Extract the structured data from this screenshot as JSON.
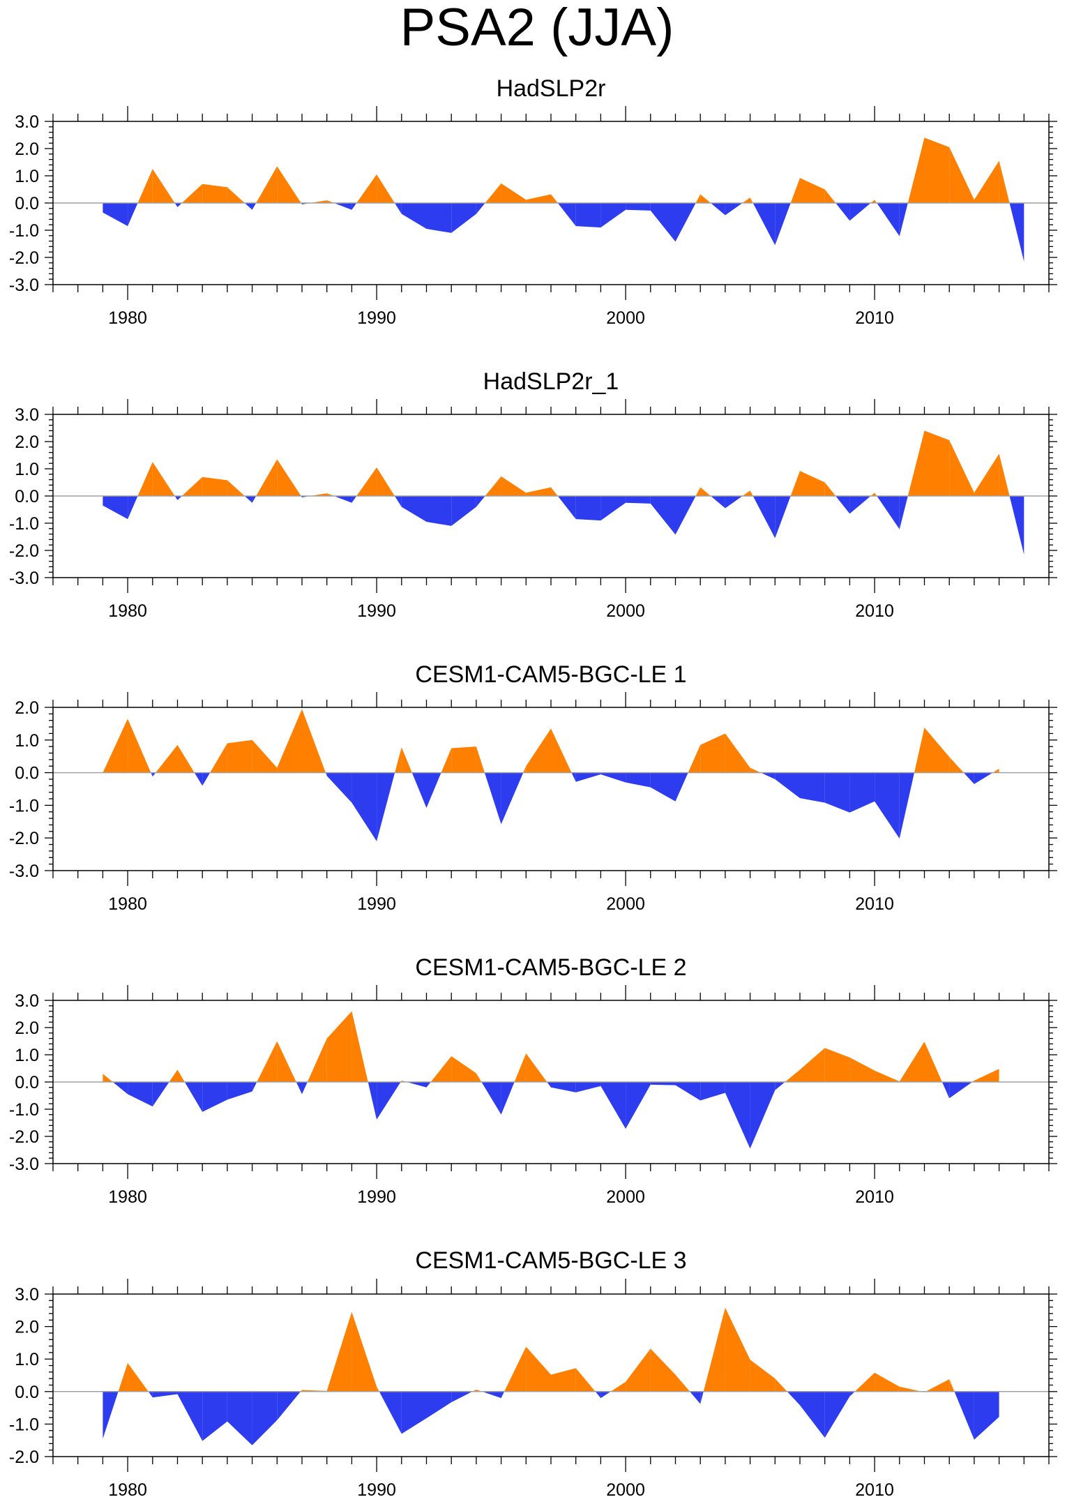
{
  "page": {
    "title": "PSA2 (JJA)"
  },
  "colors": {
    "positive": "#ff8000",
    "negative": "#2e3cf0",
    "axis": "#000000",
    "zero_line": "#a0a0a0"
  },
  "chart_data": [
    {
      "type": "area",
      "title": "HadSLP2r",
      "x": [
        1979,
        1980,
        1981,
        1982,
        1983,
        1984,
        1985,
        1986,
        1987,
        1988,
        1989,
        1990,
        1991,
        1992,
        1993,
        1994,
        1995,
        1996,
        1997,
        1998,
        1999,
        2000,
        2001,
        2002,
        2003,
        2004,
        2005,
        2006,
        2007,
        2008,
        2009,
        2010,
        2011,
        2012,
        2013,
        2014,
        2015,
        2016
      ],
      "values": [
        -0.35,
        -0.85,
        1.25,
        -0.15,
        0.7,
        0.58,
        -0.25,
        1.35,
        -0.05,
        0.1,
        -0.25,
        1.05,
        -0.4,
        -0.95,
        -1.1,
        -0.4,
        0.72,
        0.12,
        0.32,
        -0.85,
        -0.9,
        -0.25,
        -0.28,
        -1.42,
        0.32,
        -0.45,
        0.2,
        -1.55,
        0.92,
        0.5,
        -0.65,
        0.12,
        -1.22,
        2.4,
        2.05,
        0.12,
        1.55,
        -2.15
      ],
      "xlim": [
        1977,
        2017
      ],
      "ylim": [
        -3.0,
        3.0
      ],
      "yticks": [
        -3,
        -2,
        -1,
        0,
        1,
        2,
        3
      ],
      "ytick_labels": [
        "-3.0",
        "-2.0",
        "-1.0",
        "0.0",
        "1.0",
        "2.0",
        "3.0"
      ],
      "xticks": [
        1980,
        1990,
        2000,
        2010
      ],
      "xtick_labels": [
        "1980",
        "1990",
        "2000",
        "2010"
      ]
    },
    {
      "type": "area",
      "title": "HadSLP2r_1",
      "x": [
        1979,
        1980,
        1981,
        1982,
        1983,
        1984,
        1985,
        1986,
        1987,
        1988,
        1989,
        1990,
        1991,
        1992,
        1993,
        1994,
        1995,
        1996,
        1997,
        1998,
        1999,
        2000,
        2001,
        2002,
        2003,
        2004,
        2005,
        2006,
        2007,
        2008,
        2009,
        2010,
        2011,
        2012,
        2013,
        2014,
        2015,
        2016
      ],
      "values": [
        -0.35,
        -0.85,
        1.25,
        -0.15,
        0.7,
        0.58,
        -0.25,
        1.35,
        -0.05,
        0.1,
        -0.25,
        1.05,
        -0.4,
        -0.95,
        -1.1,
        -0.4,
        0.72,
        0.12,
        0.32,
        -0.85,
        -0.9,
        -0.25,
        -0.28,
        -1.42,
        0.32,
        -0.45,
        0.2,
        -1.55,
        0.92,
        0.5,
        -0.65,
        0.12,
        -1.22,
        2.4,
        2.05,
        0.12,
        1.55,
        -2.15
      ],
      "xlim": [
        1977,
        2017
      ],
      "ylim": [
        -3.0,
        3.0
      ],
      "yticks": [
        -3,
        -2,
        -1,
        0,
        1,
        2,
        3
      ],
      "ytick_labels": [
        "-3.0",
        "-2.0",
        "-1.0",
        "0.0",
        "1.0",
        "2.0",
        "3.0"
      ],
      "xticks": [
        1980,
        1990,
        2000,
        2010
      ],
      "xtick_labels": [
        "1980",
        "1990",
        "2000",
        "2010"
      ]
    },
    {
      "type": "area",
      "title": "CESM1-CAM5-BGC-LE 1",
      "x": [
        1979,
        1980,
        1981,
        1982,
        1983,
        1984,
        1985,
        1986,
        1987,
        1988,
        1989,
        1990,
        1991,
        1992,
        1993,
        1994,
        1995,
        1996,
        1997,
        1998,
        1999,
        2000,
        2001,
        2002,
        2003,
        2004,
        2005,
        2006,
        2007,
        2008,
        2009,
        2010,
        2011,
        2012,
        2013,
        2014,
        2015
      ],
      "values": [
        0.0,
        1.65,
        -0.12,
        0.85,
        -0.4,
        0.9,
        1.0,
        0.15,
        1.95,
        -0.1,
        -0.92,
        -2.1,
        0.78,
        -1.08,
        0.75,
        0.8,
        -1.58,
        0.2,
        1.35,
        -0.28,
        -0.05,
        -0.3,
        -0.45,
        -0.88,
        0.85,
        1.2,
        0.15,
        -0.2,
        -0.78,
        -0.92,
        -1.22,
        -0.88,
        -2.02,
        1.38,
        0.48,
        -0.35,
        0.12
      ],
      "xlim": [
        1977,
        2017
      ],
      "ylim": [
        -3.0,
        2.0
      ],
      "yticks": [
        -3,
        -2,
        -1,
        0,
        1,
        2
      ],
      "ytick_labels": [
        "-3.0",
        "-2.0",
        "-1.0",
        "0.0",
        "1.0",
        "2.0"
      ],
      "xticks": [
        1980,
        1990,
        2000,
        2010
      ],
      "xtick_labels": [
        "1980",
        "1990",
        "2000",
        "2010"
      ]
    },
    {
      "type": "area",
      "title": "CESM1-CAM5-BGC-LE 2",
      "x": [
        1979,
        1980,
        1981,
        1982,
        1983,
        1984,
        1985,
        1986,
        1987,
        1988,
        1989,
        1990,
        1991,
        1992,
        1993,
        1994,
        1995,
        1996,
        1997,
        1998,
        1999,
        2000,
        2001,
        2002,
        2003,
        2004,
        2005,
        2006,
        2007,
        2008,
        2009,
        2010,
        2011,
        2012,
        2013,
        2014,
        2015
      ],
      "values": [
        0.3,
        -0.45,
        -0.9,
        0.45,
        -1.1,
        -0.65,
        -0.35,
        1.5,
        -0.45,
        1.6,
        2.6,
        -1.38,
        0.05,
        -0.2,
        0.95,
        0.32,
        -1.2,
        1.05,
        -0.2,
        -0.38,
        -0.15,
        -1.72,
        -0.1,
        -0.12,
        -0.68,
        -0.4,
        -2.45,
        -0.3,
        0.45,
        1.25,
        0.9,
        0.42,
        0.02,
        1.48,
        -0.6,
        0.05,
        0.48
      ],
      "xlim": [
        1977,
        2017
      ],
      "ylim": [
        -3.0,
        3.0
      ],
      "yticks": [
        -3,
        -2,
        -1,
        0,
        1,
        2,
        3
      ],
      "ytick_labels": [
        "-3.0",
        "-2.0",
        "-1.0",
        "0.0",
        "1.0",
        "2.0",
        "3.0"
      ],
      "xticks": [
        1980,
        1990,
        2000,
        2010
      ],
      "xtick_labels": [
        "1980",
        "1990",
        "2000",
        "2010"
      ]
    },
    {
      "type": "area",
      "title": "CESM1-CAM5-BGC-LE 3",
      "x": [
        1979,
        1980,
        1981,
        1982,
        1983,
        1984,
        1985,
        1986,
        1987,
        1988,
        1989,
        1990,
        1991,
        1992,
        1993,
        1994,
        1995,
        1996,
        1997,
        1998,
        1999,
        2000,
        2001,
        2002,
        2003,
        2004,
        2005,
        2006,
        2007,
        2008,
        2009,
        2010,
        2011,
        2012,
        2013,
        2014,
        2015
      ],
      "values": [
        -1.45,
        0.88,
        -0.18,
        -0.08,
        -1.52,
        -0.92,
        -1.65,
        -0.88,
        0.05,
        0.02,
        2.45,
        0.15,
        -1.3,
        -0.82,
        -0.33,
        0.06,
        -0.2,
        1.38,
        0.52,
        0.72,
        -0.2,
        0.3,
        1.32,
        0.52,
        -0.38,
        2.58,
        0.98,
        0.4,
        -0.42,
        -1.42,
        -0.15,
        0.58,
        0.15,
        -0.02,
        0.38,
        -1.48,
        -0.78
      ],
      "xlim": [
        1977,
        2017
      ],
      "ylim": [
        -2.0,
        3.0
      ],
      "yticks": [
        -2,
        -1,
        0,
        1,
        2,
        3
      ],
      "ytick_labels": [
        "-2.0",
        "-1.0",
        "0.0",
        "1.0",
        "2.0",
        "3.0"
      ],
      "xticks": [
        1980,
        1990,
        2000,
        2010
      ],
      "xtick_labels": [
        "1980",
        "1990",
        "2000",
        "2010"
      ]
    }
  ]
}
